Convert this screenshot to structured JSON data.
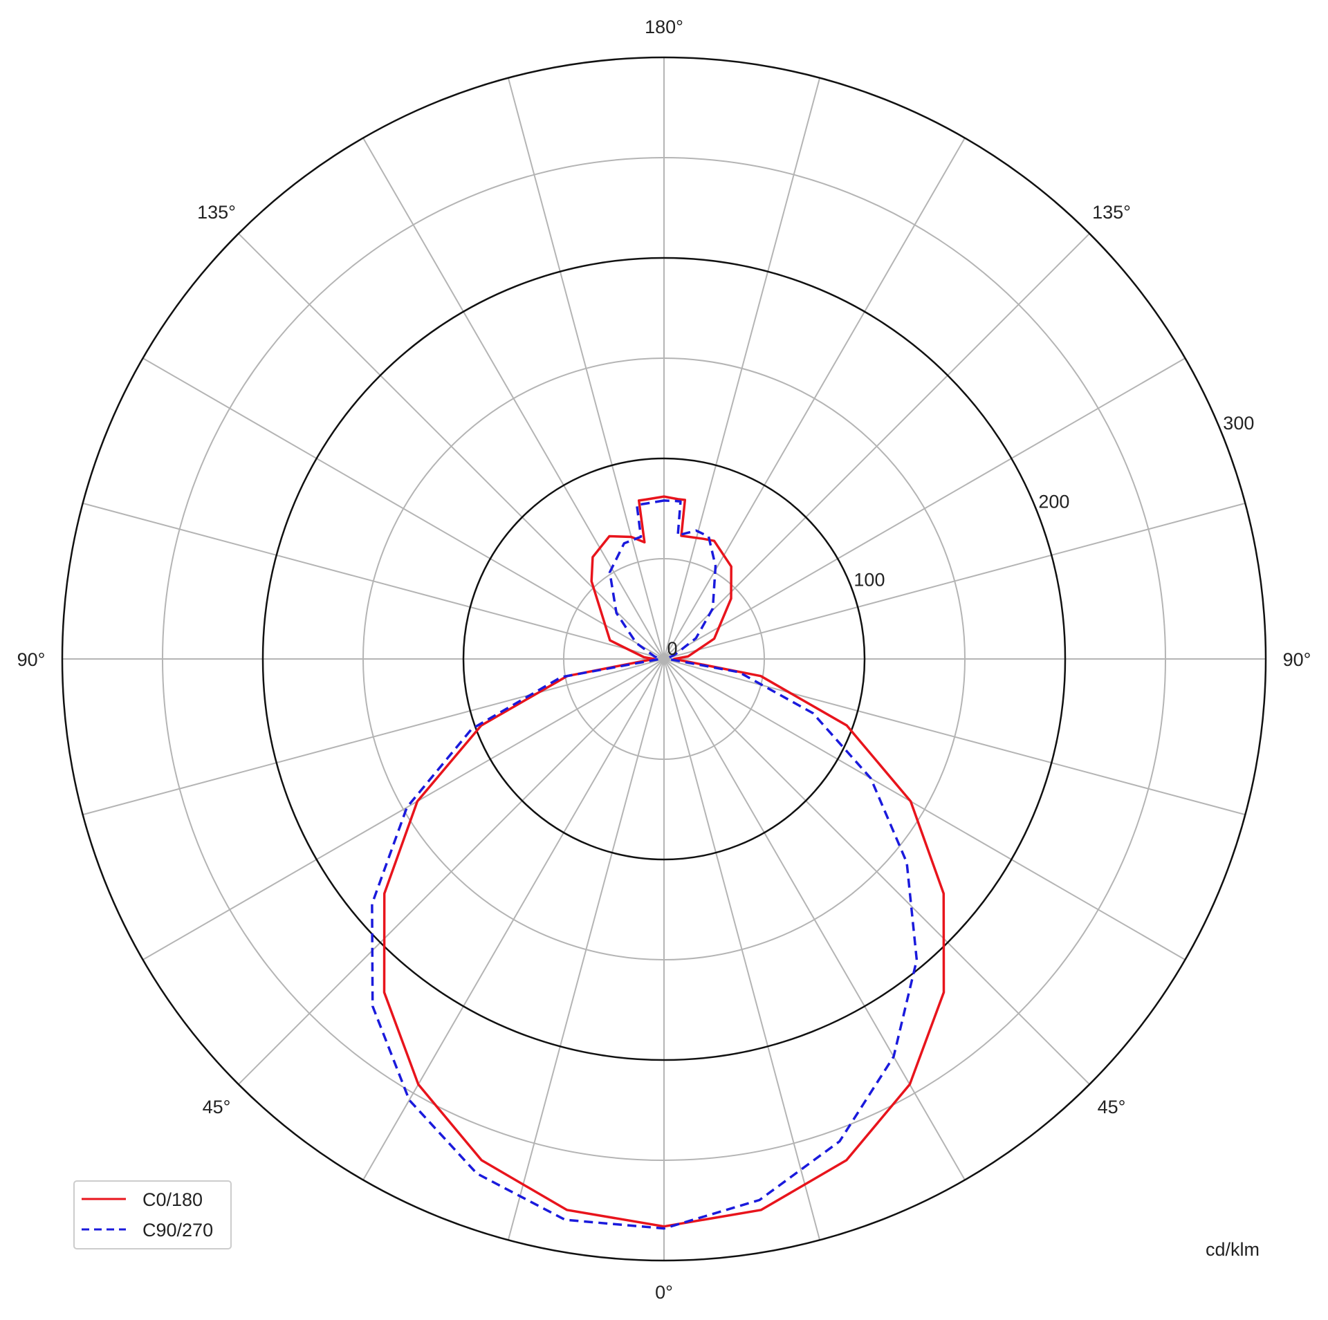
{
  "chart_data": {
    "type": "polar",
    "title": "",
    "unit_label": "cd/klm",
    "radial_range": [
      0,
      300
    ],
    "radial_ticks": [
      0,
      100,
      200,
      300
    ],
    "radial_tick_labels": [
      "0",
      "100",
      "200",
      "300"
    ],
    "minor_rings": [
      50,
      150,
      250
    ],
    "angle_step_deg": 15,
    "angle_labels": [
      {
        "text": "180°",
        "gamma": 180,
        "side": "top"
      },
      {
        "text": "135°",
        "gamma": 135,
        "side": "left"
      },
      {
        "text": "135°",
        "gamma": 135,
        "side": "right"
      },
      {
        "text": "90°",
        "gamma": 90,
        "side": "left"
      },
      {
        "text": "90°",
        "gamma": 90,
        "side": "right"
      },
      {
        "text": "45°",
        "gamma": 45,
        "side": "left"
      },
      {
        "text": "45°",
        "gamma": 45,
        "side": "right"
      },
      {
        "text": "0°",
        "gamma": 0,
        "side": "bottom"
      }
    ],
    "grid": true,
    "legend_position": "bottom-left",
    "series": [
      {
        "name": "C0/180",
        "color": "#e8141c",
        "dash": "solid",
        "left": [
          [
            0,
            283
          ],
          [
            10,
            279
          ],
          [
            20,
            266
          ],
          [
            30,
            245
          ],
          [
            40,
            217
          ],
          [
            50,
            182
          ],
          [
            60,
            142
          ],
          [
            70,
            97
          ],
          [
            80,
            49
          ],
          [
            90,
            5
          ],
          [
            95,
            10
          ],
          [
            109,
            28.5
          ],
          [
            137,
            53
          ],
          [
            145,
            62
          ],
          [
            156,
            67
          ],
          [
            165,
            63
          ],
          [
            170.5,
            59
          ],
          [
            171,
            80
          ],
          [
            173.4,
            80
          ],
          [
            180,
            81
          ]
        ],
        "right": [
          [
            0,
            283
          ],
          [
            10,
            279
          ],
          [
            20,
            266
          ],
          [
            30,
            245
          ],
          [
            40,
            217
          ],
          [
            50,
            182
          ],
          [
            60,
            142
          ],
          [
            70,
            97
          ],
          [
            80,
            49
          ],
          [
            90,
            5
          ],
          [
            96,
            12
          ],
          [
            112,
            27
          ],
          [
            132,
            45
          ],
          [
            144,
            57
          ],
          [
            157,
            64
          ],
          [
            162,
            63
          ],
          [
            172,
            62
          ],
          [
            172.5,
            80
          ],
          [
            175,
            80
          ],
          [
            180,
            81
          ]
        ]
      },
      {
        "name": "C90/270",
        "color": "#1a1adc",
        "dash": "dashed",
        "left": [
          [
            0,
            284
          ],
          [
            10,
            284
          ],
          [
            20,
            273
          ],
          [
            30,
            254
          ],
          [
            40,
            226
          ],
          [
            50,
            190
          ],
          [
            60,
            148
          ],
          [
            70,
            102
          ],
          [
            80,
            52
          ],
          [
            90,
            2
          ],
          [
            105,
            5
          ],
          [
            120,
            16
          ],
          [
            134,
            33
          ],
          [
            148,
            51
          ],
          [
            161,
            61
          ],
          [
            169.3,
            62
          ],
          [
            170,
            78
          ],
          [
            173,
            78
          ],
          [
            180,
            79
          ]
        ],
        "right": [
          [
            0,
            284
          ],
          [
            10,
            274
          ],
          [
            20,
            256
          ],
          [
            30,
            229
          ],
          [
            40,
            196
          ],
          [
            50,
            158
          ],
          [
            60,
            119
          ],
          [
            70,
            79
          ],
          [
            80,
            38
          ],
          [
            90,
            2
          ],
          [
            100,
            2
          ],
          [
            112,
            6
          ],
          [
            123,
            19
          ],
          [
            136,
            35
          ],
          [
            151,
            53
          ],
          [
            160,
            65
          ],
          [
            166,
            66
          ],
          [
            173.6,
            62
          ],
          [
            174,
            79
          ],
          [
            176,
            79
          ],
          [
            180,
            79
          ]
        ]
      }
    ]
  }
}
